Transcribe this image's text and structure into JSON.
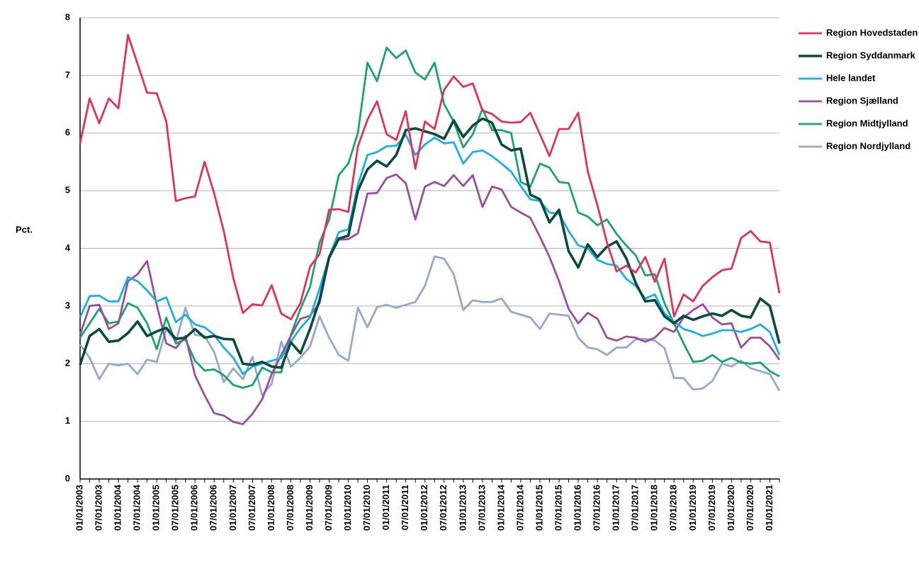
{
  "chart_data": {
    "type": "line",
    "y_label": "Pct.",
    "categories": [
      "01/01/2003",
      null,
      "07/01/2003",
      null,
      "01/01/2004",
      null,
      "07/01/2004",
      null,
      "01/01/2005",
      null,
      "07/01/2005",
      null,
      "01/01/2006",
      null,
      "07/01/2006",
      null,
      "01/01/2007",
      null,
      "07/01/2007",
      null,
      "01/01/2008",
      null,
      "07/01/2008",
      null,
      "01/01/2009",
      null,
      "07/01/2009",
      null,
      "01/01/2010",
      null,
      "07/01/2010",
      null,
      "01/01/2011",
      null,
      "07/01/2011",
      null,
      "01/01/2012",
      null,
      "07/01/2012",
      null,
      "01/01/2013",
      null,
      "07/01/2013",
      null,
      "01/01/2014",
      null,
      "07/01/2014",
      null,
      "01/01/2015",
      null,
      "07/01/2015",
      null,
      "01/01/2016",
      null,
      "07/01/2016",
      null,
      "01/01/2017",
      null,
      "07/01/2017",
      null,
      "01/01/2018",
      null,
      "07/01/2018",
      null,
      "01/01/2019",
      null,
      "07/01/2019",
      null,
      "01/01/2020",
      null,
      "07/01/2020",
      null,
      "01/01/2021",
      null
    ],
    "series": [
      {
        "name": "Region Hovedstaden",
        "color": "#e0325a",
        "values": [
          5.82,
          6.6,
          6.17,
          6.6,
          6.43,
          7.7,
          7.2,
          6.7,
          6.69,
          6.2,
          4.82,
          4.87,
          4.9,
          5.5,
          4.95,
          4.3,
          3.48,
          2.88,
          3.03,
          3.01,
          3.36,
          2.87,
          2.77,
          3.05,
          3.68,
          3.9,
          4.67,
          4.68,
          4.63,
          5.77,
          6.23,
          6.55,
          5.98,
          5.88,
          6.38,
          5.38,
          6.2,
          6.07,
          6.75,
          6.98,
          6.8,
          6.86,
          6.39,
          6.33,
          6.2,
          6.18,
          6.19,
          6.35,
          5.98,
          5.6,
          6.07,
          6.07,
          6.35,
          5.33,
          4.75,
          4.1,
          3.6,
          3.7,
          3.58,
          3.85,
          3.42,
          3.82,
          2.82,
          3.2,
          3.08,
          3.35,
          3.5,
          3.62,
          3.65,
          4.18,
          4.3,
          4.12,
          4.1,
          3.22
        ]
      },
      {
        "name": "Region Syddanmark",
        "color": "#0b4a3e",
        "values": [
          1.98,
          2.48,
          2.6,
          2.38,
          2.4,
          2.53,
          2.73,
          2.48,
          2.56,
          2.62,
          2.43,
          2.45,
          2.6,
          2.45,
          2.48,
          2.43,
          2.42,
          2.0,
          1.98,
          2.03,
          1.95,
          1.93,
          2.37,
          2.18,
          2.6,
          3.1,
          3.85,
          4.17,
          4.22,
          5.0,
          5.37,
          5.52,
          5.42,
          5.62,
          6.05,
          6.08,
          6.03,
          5.98,
          5.9,
          6.22,
          5.93,
          6.13,
          6.25,
          6.18,
          5.8,
          5.7,
          5.73,
          4.93,
          4.85,
          4.45,
          4.67,
          3.95,
          3.67,
          4.07,
          3.85,
          4.03,
          4.12,
          3.83,
          3.4,
          3.08,
          3.1,
          2.82,
          2.7,
          2.83,
          2.76,
          2.82,
          2.87,
          2.83,
          2.93,
          2.83,
          2.8,
          3.13,
          3.0,
          2.35
        ]
      },
      {
        "name": "Hele landet",
        "color": "#19b0e6",
        "values": [
          2.8,
          3.17,
          3.18,
          3.08,
          3.08,
          3.5,
          3.43,
          3.27,
          3.08,
          3.15,
          2.72,
          2.85,
          2.68,
          2.63,
          2.5,
          2.28,
          2.1,
          1.82,
          1.95,
          2.0,
          2.05,
          2.1,
          2.38,
          2.62,
          2.8,
          3.3,
          3.85,
          4.28,
          4.33,
          5.1,
          5.62,
          5.67,
          5.77,
          5.78,
          5.97,
          5.62,
          5.8,
          5.92,
          5.82,
          5.84,
          5.47,
          5.67,
          5.7,
          5.6,
          5.47,
          5.33,
          5.08,
          4.85,
          4.82,
          4.62,
          4.6,
          4.3,
          4.05,
          4.0,
          3.8,
          3.73,
          3.7,
          3.47,
          3.35,
          3.13,
          3.2,
          2.87,
          2.73,
          2.6,
          2.55,
          2.48,
          2.52,
          2.58,
          2.58,
          2.55,
          2.6,
          2.68,
          2.55,
          2.15
        ]
      },
      {
        "name": "Region Sjælland",
        "color": "#9b4d9e",
        "values": [
          2.5,
          3.0,
          3.02,
          2.6,
          2.7,
          3.43,
          3.55,
          3.78,
          3.02,
          2.35,
          2.27,
          2.48,
          1.8,
          1.45,
          1.14,
          1.1,
          0.99,
          0.95,
          1.13,
          1.38,
          1.82,
          2.15,
          2.48,
          2.78,
          2.83,
          3.05,
          3.82,
          4.15,
          4.16,
          4.26,
          4.95,
          4.96,
          5.22,
          5.28,
          5.13,
          4.5,
          5.07,
          5.15,
          5.08,
          5.27,
          5.08,
          5.27,
          4.72,
          5.07,
          5.02,
          4.72,
          4.62,
          4.53,
          4.2,
          3.85,
          3.43,
          2.95,
          2.7,
          2.88,
          2.78,
          2.45,
          2.4,
          2.47,
          2.45,
          2.38,
          2.45,
          2.62,
          2.55,
          2.8,
          2.93,
          3.03,
          2.8,
          2.68,
          2.7,
          2.28,
          2.45,
          2.45,
          2.3,
          2.07
        ]
      },
      {
        "name": "Region Midtjylland",
        "color": "#1aa56e",
        "values": [
          2.45,
          2.7,
          2.95,
          2.7,
          2.73,
          3.05,
          2.97,
          2.7,
          2.25,
          2.8,
          2.35,
          2.42,
          2.05,
          1.88,
          1.9,
          1.8,
          1.63,
          1.58,
          1.63,
          1.93,
          1.85,
          1.85,
          2.5,
          2.95,
          3.33,
          4.1,
          4.5,
          5.27,
          5.47,
          6.0,
          7.22,
          6.9,
          7.48,
          7.3,
          7.43,
          7.05,
          6.93,
          7.22,
          6.5,
          6.2,
          5.75,
          5.98,
          6.42,
          6.05,
          6.05,
          6.0,
          5.15,
          5.07,
          5.47,
          5.4,
          5.15,
          5.13,
          4.62,
          4.55,
          4.4,
          4.5,
          4.25,
          4.05,
          3.88,
          3.53,
          3.55,
          3.05,
          2.7,
          2.35,
          2.03,
          2.05,
          2.15,
          2.03,
          2.1,
          2.02,
          2.0,
          2.02,
          1.87,
          1.78
        ]
      },
      {
        "name": "Region Nordjylland",
        "color": "#94a9cc",
        "values": [
          2.33,
          2.1,
          1.73,
          2.0,
          1.97,
          2.0,
          1.82,
          2.07,
          2.03,
          2.6,
          2.38,
          2.97,
          2.5,
          2.48,
          2.2,
          1.68,
          1.92,
          1.73,
          2.12,
          1.45,
          1.65,
          2.38,
          1.95,
          2.1,
          2.3,
          2.82,
          2.45,
          2.15,
          2.05,
          2.97,
          2.63,
          2.98,
          3.02,
          2.97,
          3.02,
          3.07,
          3.35,
          3.86,
          3.82,
          3.55,
          2.93,
          3.1,
          3.07,
          3.07,
          3.13,
          2.9,
          2.85,
          2.8,
          2.6,
          2.87,
          2.85,
          2.83,
          2.45,
          2.28,
          2.25,
          2.15,
          2.28,
          2.28,
          2.42,
          2.43,
          2.4,
          2.27,
          1.75,
          1.75,
          1.55,
          1.57,
          1.7,
          2.0,
          1.95,
          2.05,
          1.92,
          1.87,
          1.82,
          1.53
        ]
      }
    ],
    "ylim": [
      0,
      8
    ],
    "yticks": [
      0,
      1,
      2,
      3,
      4,
      5,
      6,
      7,
      8
    ],
    "grid": true,
    "legend": "right"
  }
}
